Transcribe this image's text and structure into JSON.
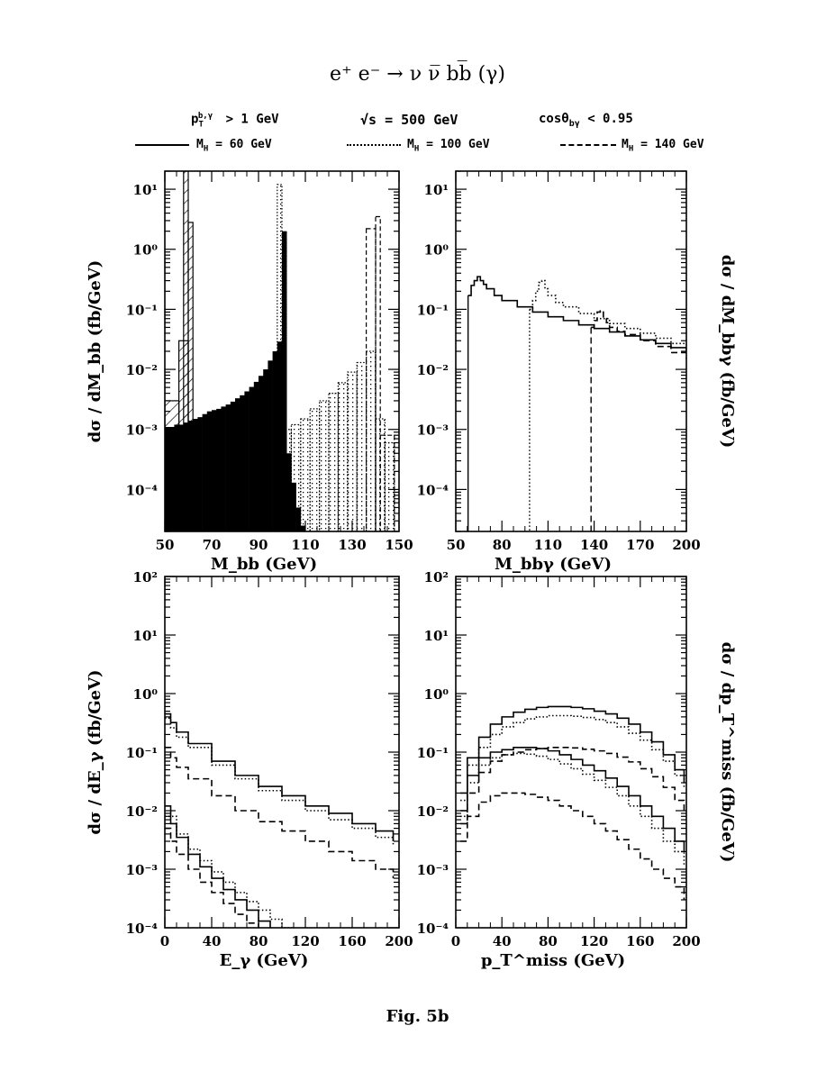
{
  "title": "e⁺ e⁻ →  ν ν̅ bb̅ (γ)",
  "cuts": {
    "pt": "p",
    "pt_sub": "T",
    "pt_sup": "b,γ",
    "pt_rest": "> 1 GeV",
    "sqrt_s": "√s =  500 GeV",
    "cos": "cosθ",
    "cos_sub": "bγ",
    "cos_rest": "< 0.95"
  },
  "legend": [
    {
      "label": "M_H = 60 GeV",
      "main": "M",
      "sub": "H",
      "rest": " = 60 GeV",
      "style": "solid"
    },
    {
      "label": "M_H = 100 GeV",
      "main": "M",
      "sub": "H",
      "rest": " = 100 GeV",
      "style": "dotted"
    },
    {
      "label": "M_H = 140 GeV",
      "main": "M",
      "sub": "H",
      "rest": " = 140 GeV",
      "style": "dashed"
    }
  ],
  "caption": "Fig. 5b",
  "chart_data": [
    {
      "type": "histogram",
      "panel": "top-left",
      "xlabel": "M_bb  (GeV)",
      "ylabel": "dσ / dM_bb  (fb/GeV)",
      "xlim": [
        50,
        150
      ],
      "ylim": [
        2e-05,
        20
      ],
      "log_y": true,
      "xticks": [
        "50",
        "70",
        "90",
        "110",
        "130",
        "150"
      ],
      "yticks": [
        "10⁻⁴",
        "10⁻³",
        "10⁻²",
        "10⁻¹",
        "10⁰",
        "10¹"
      ],
      "bin_edges": [
        50,
        52,
        54,
        56,
        58,
        60,
        62,
        64,
        66,
        68,
        70,
        72,
        74,
        76,
        78,
        80,
        82,
        84,
        86,
        88,
        90,
        92,
        94,
        96,
        98,
        100,
        102,
        104,
        106,
        108,
        110
      ],
      "series": [
        {
          "name": "M_H = 60 GeV",
          "fill": "black",
          "values": [
            0.0011,
            0.0011,
            0.0012,
            0.0012,
            0.0013,
            0.0014,
            0.0015,
            0.0016,
            0.0018,
            0.002,
            0.0021,
            0.0022,
            0.0024,
            0.0026,
            0.0029,
            0.0033,
            0.0037,
            0.0043,
            0.0051,
            0.0062,
            0.0078,
            0.01,
            0.014,
            0.02,
            0.029,
            2.0,
            0.0004,
            0.00013,
            5e-05,
            2.5e-05
          ]
        },
        {
          "name": "M_H = 60 GeV peak (hatched)",
          "fill": "hatched",
          "bins": [
            [
              50,
              56,
              0.003
            ],
            [
              56,
              60,
              0.03
            ],
            [
              58,
              60,
              20
            ],
            [
              60,
              62,
              2.8
            ]
          ]
        },
        {
          "name": "M_H = 100 GeV",
          "fill": "dotted",
          "bins": [
            [
              98,
              100,
              12
            ],
            [
              100,
              104,
              0.001
            ],
            [
              104,
              108,
              0.0012
            ],
            [
              108,
              112,
              0.0015
            ],
            [
              112,
              116,
              0.0022
            ],
            [
              116,
              120,
              0.003
            ],
            [
              120,
              124,
              0.004
            ],
            [
              124,
              128,
              0.006
            ],
            [
              128,
              132,
              0.009
            ],
            [
              132,
              136,
              0.013
            ],
            [
              136,
              140,
              0.02
            ],
            [
              140,
              144,
              0.0015
            ],
            [
              144,
              148,
              0.0006
            ]
          ]
        },
        {
          "name": "M_H = 140 GeV",
          "fill": "dashed",
          "bins": [
            [
              136,
              140,
              2.2
            ],
            [
              140,
              142,
              3.5
            ],
            [
              142,
              148,
              0.0008
            ]
          ]
        }
      ]
    },
    {
      "type": "line",
      "panel": "top-right",
      "xlabel": "M_bbγ  (GeV)",
      "ylabel": "dσ / dM_bbγ  (fb/GeV)",
      "xlim": [
        50,
        200
      ],
      "ylim": [
        2e-05,
        20
      ],
      "log_y": true,
      "xticks": [
        "50",
        "80",
        "110",
        "140",
        "170",
        "200"
      ],
      "yticks": [
        "10⁻⁴",
        "10⁻³",
        "10⁻²",
        "10⁻¹",
        "10⁰",
        "10¹"
      ],
      "series": [
        {
          "name": "M_H = 60 GeV",
          "style": "solid",
          "x": [
            58,
            60,
            62,
            64,
            66,
            68,
            70,
            75,
            80,
            90,
            100,
            110,
            120,
            130,
            140,
            150,
            160,
            170,
            180,
            190,
            200
          ],
          "y": [
            0.17,
            0.25,
            0.3,
            0.35,
            0.3,
            0.26,
            0.22,
            0.17,
            0.14,
            0.11,
            0.09,
            0.075,
            0.065,
            0.055,
            0.048,
            0.042,
            0.036,
            0.031,
            0.027,
            0.023,
            0.02
          ]
        },
        {
          "name": "M_H = 100 GeV",
          "style": "dotted",
          "x": [
            98,
            100,
            102,
            104,
            106,
            108,
            110,
            115,
            120,
            130,
            140,
            150,
            160,
            170,
            180,
            190,
            200
          ],
          "y": [
            0.1,
            0.14,
            0.2,
            0.28,
            0.3,
            0.22,
            0.17,
            0.13,
            0.11,
            0.085,
            0.07,
            0.058,
            0.048,
            0.04,
            0.033,
            0.027,
            0.022
          ]
        },
        {
          "name": "M_H = 140 GeV",
          "style": "dashed",
          "x": [
            138,
            140,
            142,
            144,
            146,
            148,
            150,
            155,
            160,
            170,
            180,
            190,
            200
          ],
          "y": [
            0.05,
            0.065,
            0.09,
            0.095,
            0.07,
            0.06,
            0.05,
            0.043,
            0.038,
            0.03,
            0.024,
            0.019,
            0.015
          ]
        }
      ]
    },
    {
      "type": "line",
      "panel": "bottom-left",
      "xlabel": "E_γ  (GeV)",
      "ylabel": "dσ / dE_γ  (fb/GeV)",
      "xlim": [
        0,
        200
      ],
      "ylim": [
        0.0001,
        100
      ],
      "log_y": true,
      "xticks": [
        "0",
        "40",
        "80",
        "120",
        "160",
        "200"
      ],
      "yticks": [
        "10⁻⁴",
        "10⁻³",
        "10⁻²",
        "10⁻¹",
        "10⁰",
        "10¹",
        "10²"
      ],
      "series": [
        {
          "name": "M_H = 60 GeV (a)",
          "style": "solid",
          "x": [
            0,
            5,
            10,
            20,
            40,
            60,
            80,
            100,
            120,
            140,
            160,
            180,
            195
          ],
          "y": [
            0.45,
            0.32,
            0.22,
            0.14,
            0.07,
            0.04,
            0.026,
            0.018,
            0.012,
            0.009,
            0.006,
            0.0045,
            0.003
          ]
        },
        {
          "name": "M_H = 100 GeV (a)",
          "style": "dotted",
          "x": [
            0,
            5,
            10,
            20,
            40,
            60,
            80,
            100,
            120,
            140,
            160,
            180,
            195
          ],
          "y": [
            0.38,
            0.26,
            0.18,
            0.12,
            0.06,
            0.035,
            0.022,
            0.015,
            0.01,
            0.007,
            0.005,
            0.0035,
            0.0025
          ]
        },
        {
          "name": "M_H = 140 GeV (a)",
          "style": "dashed",
          "x": [
            0,
            5,
            10,
            20,
            40,
            60,
            80,
            100,
            120,
            140,
            160,
            180,
            195
          ],
          "y": [
            0.12,
            0.08,
            0.055,
            0.035,
            0.018,
            0.01,
            0.0065,
            0.0045,
            0.003,
            0.002,
            0.0014,
            0.001,
            0.0007
          ]
        },
        {
          "name": "M_H = 60 GeV (b)",
          "style": "solid",
          "x": [
            0,
            5,
            10,
            20,
            30,
            40,
            50,
            60,
            70,
            80,
            90
          ],
          "y": [
            0.012,
            0.006,
            0.0035,
            0.0018,
            0.0011,
            0.0007,
            0.00045,
            0.0003,
            0.0002,
            0.00013,
            0.0001
          ]
        },
        {
          "name": "M_H = 100 GeV (b)",
          "style": "dotted",
          "x": [
            0,
            10,
            20,
            30,
            40,
            50,
            60,
            70,
            80,
            90,
            100,
            110
          ],
          "y": [
            0.008,
            0.004,
            0.0022,
            0.0014,
            0.0009,
            0.0006,
            0.0004,
            0.00028,
            0.0002,
            0.00014,
            0.0001,
            8e-05
          ]
        },
        {
          "name": "M_H = 140 GeV (b)",
          "style": "dashed",
          "x": [
            0,
            5,
            10,
            20,
            30,
            40,
            50,
            60,
            70,
            80
          ],
          "y": [
            0.005,
            0.003,
            0.0018,
            0.001,
            0.0006,
            0.0004,
            0.00026,
            0.00017,
            0.00012,
            9e-05
          ]
        }
      ]
    },
    {
      "type": "line",
      "panel": "bottom-right",
      "xlabel": "p_T^miss  (GeV)",
      "ylabel": "dσ / dp_T^miss  (fb/GeV)",
      "xlim": [
        0,
        200
      ],
      "ylim": [
        0.0001,
        100
      ],
      "log_y": true,
      "xticks": [
        "0",
        "40",
        "80",
        "120",
        "160",
        "200"
      ],
      "yticks": [
        "10⁻⁴",
        "10⁻³",
        "10⁻²",
        "10⁻¹",
        "10⁰",
        "10¹",
        "10²"
      ],
      "series": [
        {
          "name": "M_H = 60 GeV (a)",
          "style": "solid",
          "x": [
            4,
            10,
            20,
            30,
            40,
            50,
            60,
            70,
            80,
            90,
            100,
            110,
            120,
            130,
            140,
            150,
            160,
            170,
            180,
            190,
            198
          ],
          "y": [
            0.02,
            0.08,
            0.18,
            0.3,
            0.4,
            0.48,
            0.54,
            0.58,
            0.6,
            0.6,
            0.58,
            0.55,
            0.5,
            0.45,
            0.38,
            0.3,
            0.22,
            0.15,
            0.09,
            0.05,
            0.03
          ]
        },
        {
          "name": "M_H = 100 GeV (a)",
          "style": "dotted",
          "x": [
            4,
            10,
            20,
            30,
            40,
            50,
            60,
            70,
            80,
            90,
            100,
            110,
            120,
            130,
            140,
            150,
            160,
            170,
            180,
            190,
            198
          ],
          "y": [
            0.015,
            0.06,
            0.12,
            0.2,
            0.27,
            0.32,
            0.37,
            0.4,
            0.42,
            0.42,
            0.41,
            0.39,
            0.36,
            0.32,
            0.27,
            0.21,
            0.16,
            0.11,
            0.07,
            0.04,
            0.025
          ]
        },
        {
          "name": "M_H = 140 GeV (a)",
          "style": "dashed",
          "x": [
            4,
            10,
            20,
            30,
            40,
            50,
            60,
            70,
            80,
            90,
            100,
            110,
            120,
            130,
            140,
            150,
            160,
            170,
            180,
            190,
            198
          ],
          "y": [
            0.006,
            0.02,
            0.045,
            0.07,
            0.09,
            0.1,
            0.11,
            0.115,
            0.12,
            0.12,
            0.118,
            0.112,
            0.105,
            0.095,
            0.082,
            0.068,
            0.052,
            0.038,
            0.025,
            0.015,
            0.009
          ]
        },
        {
          "name": "M_H = 60 GeV (b)",
          "style": "solid",
          "x": [
            4,
            10,
            20,
            30,
            40,
            50,
            60,
            70,
            80,
            90,
            100,
            110,
            120,
            130,
            140,
            150,
            160,
            170,
            180,
            190,
            198
          ],
          "y": [
            0.01,
            0.04,
            0.08,
            0.1,
            0.11,
            0.12,
            0.12,
            0.115,
            0.105,
            0.09,
            0.075,
            0.06,
            0.048,
            0.036,
            0.026,
            0.018,
            0.012,
            0.008,
            0.005,
            0.003,
            0.002
          ]
        },
        {
          "name": "M_H = 100 GeV (b)",
          "style": "dotted",
          "x": [
            4,
            10,
            20,
            30,
            40,
            50,
            60,
            70,
            80,
            90,
            100,
            110,
            120,
            130,
            140,
            150,
            160,
            170,
            180,
            190,
            198
          ],
          "y": [
            0.008,
            0.03,
            0.06,
            0.08,
            0.09,
            0.095,
            0.092,
            0.085,
            0.075,
            0.063,
            0.052,
            0.042,
            0.033,
            0.025,
            0.018,
            0.012,
            0.008,
            0.005,
            0.003,
            0.002,
            0.0012
          ]
        },
        {
          "name": "M_H = 140 GeV (b)",
          "style": "dashed",
          "x": [
            4,
            10,
            20,
            30,
            40,
            50,
            60,
            70,
            80,
            90,
            100,
            110,
            120,
            130,
            140,
            150,
            160,
            170,
            180,
            190,
            198
          ],
          "y": [
            0.003,
            0.008,
            0.014,
            0.018,
            0.02,
            0.02,
            0.019,
            0.017,
            0.015,
            0.012,
            0.01,
            0.008,
            0.006,
            0.0045,
            0.0032,
            0.0022,
            0.0015,
            0.001,
            0.0007,
            0.0005,
            0.0003
          ]
        }
      ]
    }
  ]
}
